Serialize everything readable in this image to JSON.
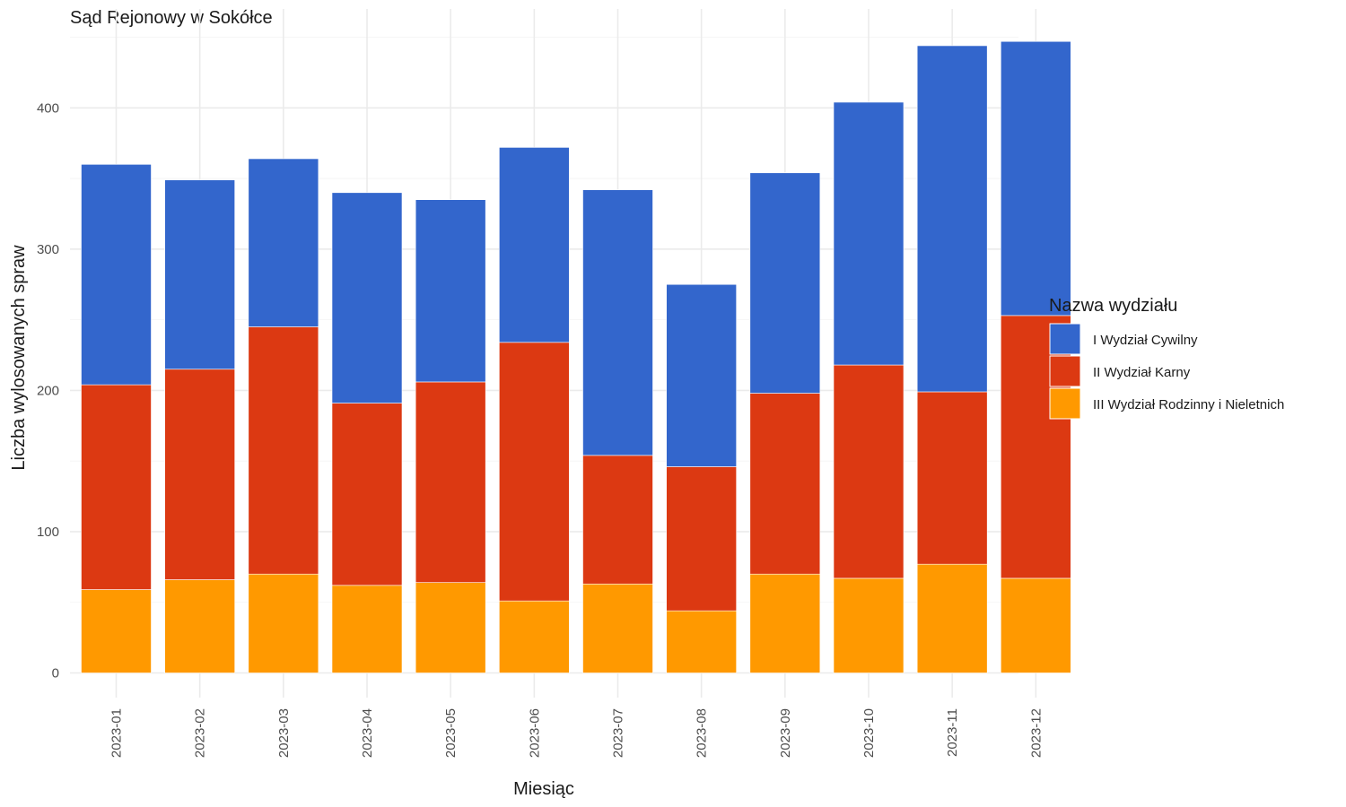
{
  "chart_data": {
    "type": "bar",
    "stacked": true,
    "title": "Sąd Rejonowy w Sokółce",
    "xlabel": "Miesiąc",
    "ylabel": "Liczba wylosowanych spraw",
    "ylim": [
      0,
      450
    ],
    "yticks": [
      0,
      100,
      200,
      300,
      400
    ],
    "grid": true,
    "legend_title": "Nazwa wydziału",
    "legend_position": "right",
    "categories": [
      "2023-01",
      "2023-02",
      "2023-03",
      "2023-04",
      "2023-05",
      "2023-06",
      "2023-07",
      "2023-08",
      "2023-09",
      "2023-10",
      "2023-11",
      "2023-12"
    ],
    "series": [
      {
        "name": "III Wydział Rodzinny i Nieletnich",
        "color": "#FF9900",
        "values": [
          59,
          66,
          70,
          62,
          64,
          51,
          63,
          44,
          70,
          67,
          77,
          67
        ]
      },
      {
        "name": "II Wydział Karny",
        "color": "#DC3912",
        "values": [
          145,
          149,
          175,
          129,
          142,
          183,
          91,
          102,
          128,
          151,
          122,
          186
        ]
      },
      {
        "name": "I Wydział Cywilny",
        "color": "#3366CC",
        "values": [
          156,
          134,
          119,
          149,
          129,
          138,
          188,
          129,
          156,
          186,
          245,
          194
        ]
      }
    ],
    "legend_order": [
      "I Wydział Cywilny",
      "II Wydział Karny",
      "III Wydział Rodzinny i Nieletnich"
    ]
  }
}
